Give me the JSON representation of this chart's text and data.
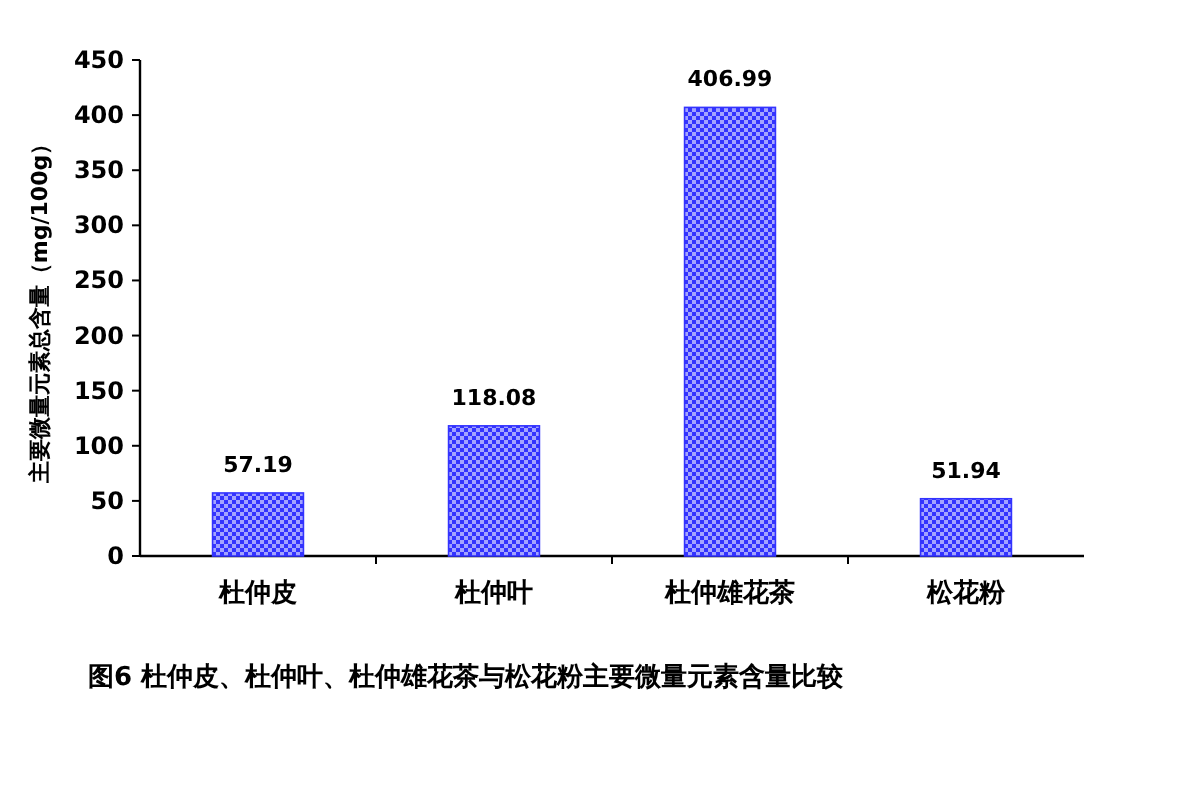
{
  "chart_data": {
    "type": "bar",
    "title": "图6 杜仲皮、杜仲叶、杜仲雄花茶与松花粉主要微量元素含量比较",
    "ylabel": "主要微量元素总含量（mg/100g）",
    "categories": [
      "杜仲皮",
      "杜仲叶",
      "杜仲雄花茶",
      "松花粉"
    ],
    "values": [
      57.19,
      118.08,
      406.99,
      51.94
    ],
    "color": "#3333ff",
    "ylim": [
      0,
      450
    ],
    "yticks": [
      0,
      50,
      100,
      150,
      200,
      250,
      300,
      350,
      400,
      450
    ],
    "data_labels": true
  }
}
